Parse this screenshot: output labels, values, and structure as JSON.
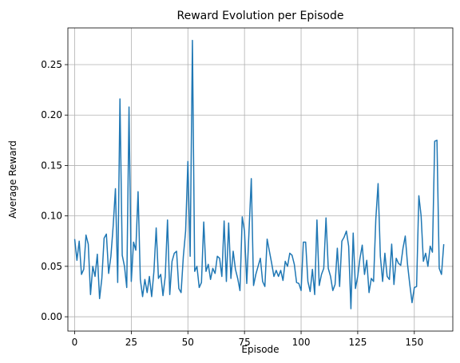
{
  "chart_data": {
    "type": "line",
    "title": "Reward Evolution per Episode",
    "x_label": "Episode",
    "y_label": "Average Reward",
    "x": [
      0,
      1,
      2,
      3,
      4,
      5,
      6,
      7,
      8,
      9,
      10,
      11,
      12,
      13,
      14,
      15,
      16,
      17,
      18,
      19,
      20,
      21,
      22,
      23,
      24,
      25,
      26,
      27,
      28,
      29,
      30,
      31,
      32,
      33,
      34,
      35,
      36,
      37,
      38,
      39,
      40,
      41,
      42,
      43,
      44,
      45,
      46,
      47,
      48,
      49,
      50,
      51,
      52,
      53,
      54,
      55,
      56,
      57,
      58,
      59,
      60,
      61,
      62,
      63,
      64,
      65,
      66,
      67,
      68,
      69,
      70,
      71,
      72,
      73,
      74,
      75,
      76,
      77,
      78,
      79,
      80,
      81,
      82,
      83,
      84,
      85,
      86,
      87,
      88,
      89,
      90,
      91,
      92,
      93,
      94,
      95,
      96,
      97,
      98,
      99,
      100,
      101,
      102,
      103,
      104,
      105,
      106,
      107,
      108,
      109,
      110,
      111,
      112,
      113,
      114,
      115,
      116,
      117,
      118,
      119,
      120,
      121,
      122,
      123,
      124,
      125,
      126,
      127,
      128,
      129,
      130,
      131,
      132,
      133,
      134,
      135,
      136,
      137,
      138,
      139,
      140,
      141,
      142,
      143,
      144,
      145,
      146,
      147,
      148,
      149,
      150,
      151,
      152,
      153,
      154,
      155,
      156,
      157,
      158,
      159,
      160,
      161,
      162,
      163
    ],
    "series": [
      {
        "name": "Average Reward",
        "color": "#1f77b4",
        "values": [
          0.077,
          0.056,
          0.075,
          0.042,
          0.047,
          0.081,
          0.072,
          0.022,
          0.05,
          0.04,
          0.062,
          0.018,
          0.038,
          0.078,
          0.082,
          0.043,
          0.06,
          0.09,
          0.127,
          0.034,
          0.216,
          0.061,
          0.05,
          0.029,
          0.208,
          0.035,
          0.074,
          0.066,
          0.124,
          0.037,
          0.02,
          0.037,
          0.024,
          0.04,
          0.02,
          0.045,
          0.088,
          0.038,
          0.042,
          0.021,
          0.04,
          0.096,
          0.022,
          0.055,
          0.063,
          0.065,
          0.028,
          0.024,
          0.06,
          0.085,
          0.154,
          0.06,
          0.274,
          0.045,
          0.05,
          0.029,
          0.034,
          0.094,
          0.045,
          0.052,
          0.037,
          0.048,
          0.043,
          0.06,
          0.058,
          0.04,
          0.095,
          0.035,
          0.093,
          0.038,
          0.065,
          0.047,
          0.038,
          0.026,
          0.099,
          0.085,
          0.033,
          0.085,
          0.137,
          0.031,
          0.042,
          0.05,
          0.058,
          0.035,
          0.03,
          0.077,
          0.065,
          0.053,
          0.04,
          0.046,
          0.04,
          0.046,
          0.036,
          0.055,
          0.05,
          0.063,
          0.061,
          0.052,
          0.034,
          0.033,
          0.026,
          0.074,
          0.074,
          0.035,
          0.025,
          0.047,
          0.022,
          0.096,
          0.031,
          0.042,
          0.048,
          0.098,
          0.048,
          0.04,
          0.026,
          0.032,
          0.068,
          0.03,
          0.075,
          0.079,
          0.085,
          0.07,
          0.008,
          0.083,
          0.028,
          0.04,
          0.058,
          0.071,
          0.042,
          0.056,
          0.024,
          0.038,
          0.035,
          0.097,
          0.132,
          0.06,
          0.035,
          0.063,
          0.04,
          0.037,
          0.072,
          0.032,
          0.058,
          0.053,
          0.051,
          0.068,
          0.08,
          0.052,
          0.032,
          0.014,
          0.029,
          0.03,
          0.12,
          0.1,
          0.055,
          0.063,
          0.05,
          0.07,
          0.064,
          0.174,
          0.175,
          0.048,
          0.042,
          0.072
        ]
      }
    ],
    "xlim": [
      -3,
      167
    ],
    "xticks": [
      0,
      25,
      50,
      75,
      100,
      125,
      150
    ],
    "ylim": [
      -0.0142,
      0.2864
    ],
    "yticks": [
      {
        "value": 0,
        "label": "0.00"
      },
      {
        "value": 0.05,
        "label": "0.05"
      },
      {
        "value": 0.1,
        "label": "0.10"
      },
      {
        "value": 0.15,
        "label": "0.15"
      },
      {
        "value": 0.2,
        "label": "0.20"
      },
      {
        "value": 0.25,
        "label": "0.25"
      }
    ],
    "grid": true
  }
}
